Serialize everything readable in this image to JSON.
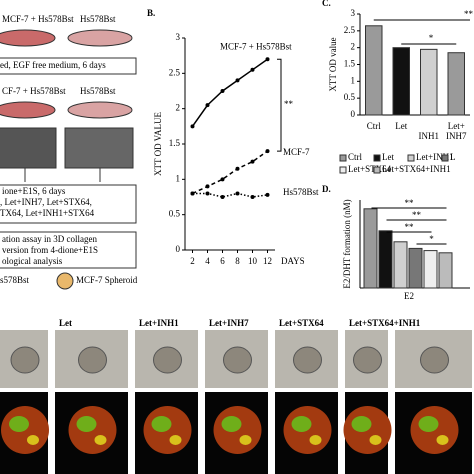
{
  "schematic": {
    "texts": [
      "MCF-7 + Hs578Bst",
      "Hs578Bst",
      "ed, EGF free medium, 6 days",
      "CF-7 + Hs578Bst",
      "Hs578Bst",
      "ione+E1S, 6 days",
      ", Let+INH7, Let+STX64,",
      "TX64, Let+INH1+STX64",
      "ation assay in 3D collagen",
      "version from 4-dione+E1S",
      "ological analysis",
      "s578Bst",
      "MCF-7 Spheroid"
    ]
  },
  "chart_data": [
    {
      "type": "line",
      "title": "B.",
      "ylabel": "XTT OD VALUE",
      "xlabel": "DAYS",
      "annotations": [
        "**"
      ],
      "x": [
        2,
        4,
        6,
        8,
        10,
        12
      ],
      "xlim": [
        1,
        13
      ],
      "xticks": [
        2,
        4,
        6,
        8,
        10,
        12
      ],
      "ylim": [
        0,
        3
      ],
      "yticks": [
        0,
        0.5,
        1,
        1.5,
        2,
        2.5,
        3
      ],
      "series": [
        {
          "name": "MCF-7 + Hs578Bst",
          "color": "#000000",
          "style": "solid",
          "values": [
            1.75,
            2.05,
            2.25,
            2.4,
            2.55,
            2.7
          ]
        },
        {
          "name": "MCF-7",
          "color": "#000000",
          "style": "dashed",
          "values": [
            0.8,
            0.9,
            1.0,
            1.15,
            1.25,
            1.4
          ]
        },
        {
          "name": "Hs578Bst",
          "color": "#000000",
          "style": "dotted",
          "values": [
            0.8,
            0.8,
            0.75,
            0.8,
            0.75,
            0.78
          ]
        }
      ]
    },
    {
      "type": "bar",
      "title": "C.",
      "ylabel": "XTT OD value",
      "annotations": [
        "**",
        "*",
        "Let+"
      ],
      "categories": [
        "Ctrl",
        "Let",
        "INH1",
        "INH7"
      ],
      "values": [
        2.65,
        2.0,
        1.95,
        1.85
      ],
      "colors": [
        "#9a9a9a",
        "#111111",
        "#d0d0d0",
        "#9a9a9a"
      ],
      "ylim": [
        0,
        3
      ],
      "yticks": [
        0,
        0.5,
        1,
        1.5,
        2,
        2.5,
        3
      ]
    },
    {
      "type": "groupbar",
      "title": "D.",
      "ylabel": "E2/DHT formation (nM)",
      "categories": [
        "E2"
      ],
      "annotations": [
        "**",
        "**",
        "**",
        "*"
      ],
      "ylim": [
        0,
        0.4
      ],
      "series": [
        {
          "name": "Ctrl",
          "color": "#9a9a9a",
          "values": [
            0.36
          ]
        },
        {
          "name": "Let",
          "color": "#111111",
          "values": [
            0.26
          ]
        },
        {
          "name": "Let+INH1",
          "color": "#d0d0d0",
          "values": [
            0.21
          ]
        },
        {
          "name": "L",
          "color": "#777777",
          "values": [
            0.18
          ]
        },
        {
          "name": "Let+STX64",
          "color": "#eeeeee",
          "values": [
            0.17
          ]
        },
        {
          "name": "Let+STX64+INH1",
          "color": "#bbbbbb",
          "values": [
            0.16
          ]
        }
      ]
    }
  ],
  "micrographs": {
    "labels": [
      "Let",
      "Let+INH1",
      "Let+INH7",
      "Let+STX64",
      "Let+STX64+INH1"
    ]
  }
}
